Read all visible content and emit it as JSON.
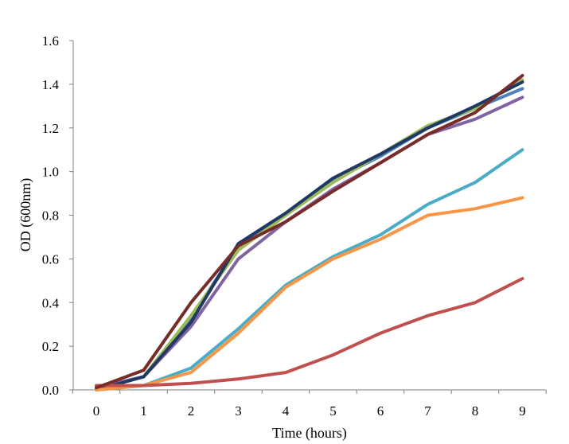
{
  "chart_data": {
    "type": "line",
    "xlabel": "Time (hours)",
    "ylabel": "OD (600nm)",
    "xlim": [
      0,
      9
    ],
    "ylim": [
      0,
      1.6
    ],
    "x": [
      0,
      1,
      2,
      3,
      4,
      5,
      6,
      7,
      8,
      9
    ],
    "x_tick_labels": [
      "0",
      "1",
      "2",
      "3",
      "4",
      "5",
      "6",
      "7",
      "8",
      "9"
    ],
    "y_ticks": [
      0,
      0.2,
      0.4,
      0.6,
      0.8,
      1.0,
      1.2,
      1.4,
      1.6
    ],
    "y_tick_labels": [
      "0.0",
      "0.2",
      "0.4",
      "0.6",
      "0.8",
      "1.0",
      "1.2",
      "1.4",
      "1.6"
    ],
    "grid": false,
    "legend": "none",
    "series": [
      {
        "color": "#4f81bd",
        "values": [
          0.01,
          0.06,
          0.33,
          0.66,
          0.8,
          0.96,
          1.07,
          1.2,
          1.29,
          1.38
        ]
      },
      {
        "color": "#9bbb59",
        "values": [
          0.01,
          0.06,
          0.34,
          0.64,
          0.8,
          0.95,
          1.08,
          1.21,
          1.29,
          1.42
        ]
      },
      {
        "color": "#8064a2",
        "values": [
          0.01,
          0.06,
          0.29,
          0.6,
          0.77,
          0.92,
          1.04,
          1.17,
          1.24,
          1.34
        ]
      },
      {
        "color": "#1f3864",
        "values": [
          0.0,
          0.06,
          0.31,
          0.67,
          0.81,
          0.97,
          1.08,
          1.2,
          1.3,
          1.41
        ]
      },
      {
        "color": "#4bacc6",
        "values": [
          0.0,
          0.02,
          0.1,
          0.28,
          0.48,
          0.61,
          0.71,
          0.85,
          0.95,
          1.1
        ]
      },
      {
        "color": "#f79646",
        "values": [
          0.0,
          0.02,
          0.08,
          0.26,
          0.47,
          0.6,
          0.69,
          0.8,
          0.83,
          0.88
        ]
      },
      {
        "color": "#c0504d",
        "values": [
          0.02,
          0.02,
          0.03,
          0.05,
          0.08,
          0.16,
          0.26,
          0.34,
          0.4,
          0.51
        ]
      },
      {
        "color": "#772c2a",
        "values": [
          0.01,
          0.09,
          0.4,
          0.66,
          0.77,
          0.91,
          1.04,
          1.17,
          1.27,
          1.44
        ]
      }
    ]
  }
}
